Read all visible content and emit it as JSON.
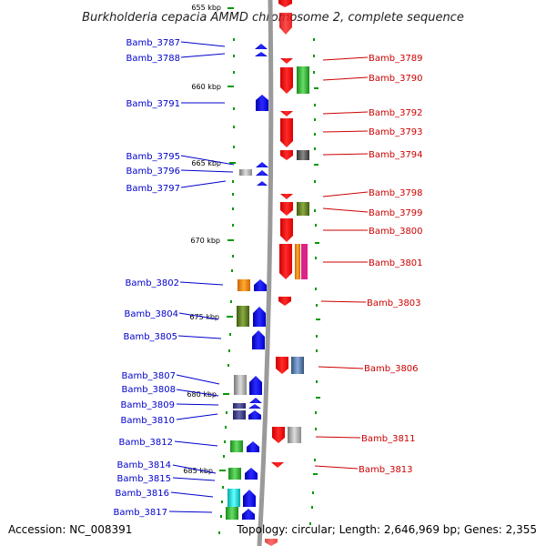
{
  "title": "Burkholderia cepacia AMMD chromosome 2, complete sequence",
  "footer": {
    "accession": "Accession: NC_008391",
    "topology": "Topology: circular; Length: 2,646,969 bp; Genes: 2,355"
  },
  "scale": {
    "ticks": [
      "655 kbp",
      "660 kbp",
      "665 kbp",
      "670 kbp",
      "675 kbp",
      "680 kbp",
      "685 kbp"
    ]
  },
  "colors": {
    "left_labels": "#0000cc",
    "right_labels": "#cc0000",
    "forward_genes": "#0000ff",
    "reverse_genes": "#ff0000",
    "backbone": "#999999",
    "minor_ticks": "#009900"
  },
  "genes_left": [
    "Bamb_3787",
    "Bamb_3788",
    "Bamb_3791",
    "Bamb_3795",
    "Bamb_3796",
    "Bamb_3797",
    "Bamb_3802",
    "Bamb_3804",
    "Bamb_3805",
    "Bamb_3807",
    "Bamb_3808",
    "Bamb_3809",
    "Bamb_3810",
    "Bamb_3812",
    "Bamb_3814",
    "Bamb_3815",
    "Bamb_3816",
    "Bamb_3817"
  ],
  "genes_right": [
    "Bamb_3789",
    "Bamb_3790",
    "Bamb_3792",
    "Bamb_3793",
    "Bamb_3794",
    "Bamb_3798",
    "Bamb_3799",
    "Bamb_3800",
    "Bamb_3801",
    "Bamb_3803",
    "Bamb_3806",
    "Bamb_3811",
    "Bamb_3813"
  ]
}
